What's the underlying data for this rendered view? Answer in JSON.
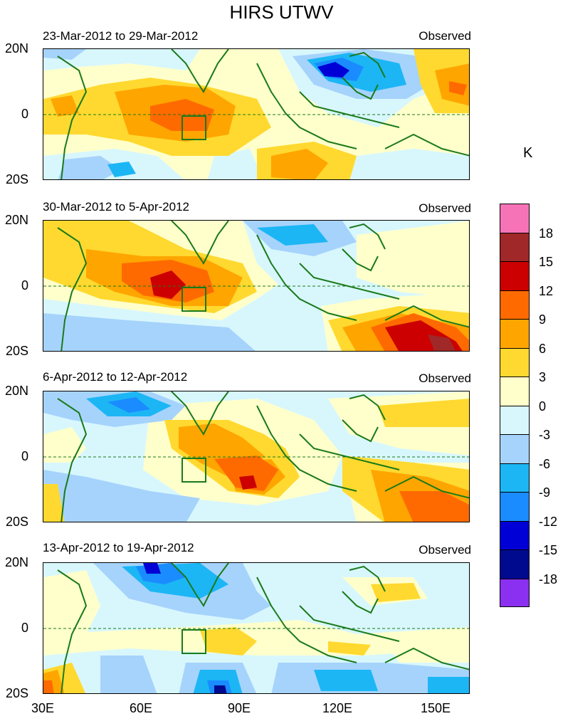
{
  "figure": {
    "title": "HIRS UTWV",
    "units": "K"
  },
  "panels": [
    {
      "date_range": "23-Mar-2012 to 29-Mar-2012",
      "label": "Observed"
    },
    {
      "date_range": "30-Mar-2012 to 5-Apr-2012",
      "label": "Observed"
    },
    {
      "date_range": "6-Apr-2012 to 12-Apr-2012",
      "label": "Observed"
    },
    {
      "date_range": "13-Apr-2012 to 19-Apr-2012",
      "label": "Observed"
    }
  ],
  "axes": {
    "y_labels": [
      "20N",
      "0",
      "20S"
    ],
    "x_labels": [
      "30E",
      "60E",
      "90E",
      "120E",
      "150E"
    ]
  },
  "colorbar": {
    "labels": [
      "18",
      "15",
      "12",
      "9",
      "6",
      "3",
      "0",
      "-3",
      "-6",
      "-9",
      "-12",
      "-15",
      "-18"
    ],
    "colors": [
      "#f773b8",
      "#a02828",
      "#cc0000",
      "#ff6a00",
      "#ffa500",
      "#ffd92f",
      "#ffffcc",
      "#d8f7fd",
      "#a6d3fc",
      "#1cb6f5",
      "#1a8cff",
      "#0000d6",
      "#000a8f",
      "#8b30f0"
    ]
  }
}
